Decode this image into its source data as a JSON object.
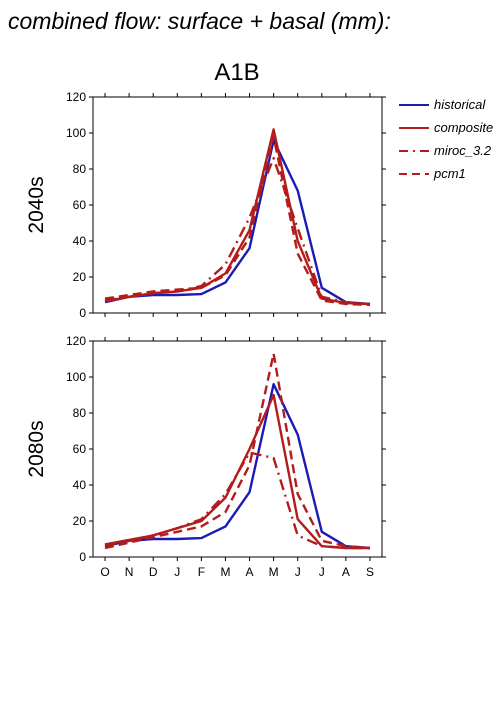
{
  "chart_data": {
    "type": "line",
    "title": "combined flow: surface + basal (mm):",
    "subtitle": "A1B",
    "categories": [
      "O",
      "N",
      "D",
      "J",
      "F",
      "M",
      "A",
      "M",
      "J",
      "J",
      "A",
      "S"
    ],
    "ylim": [
      0,
      120
    ],
    "yticks": [
      0,
      20,
      40,
      60,
      80,
      100,
      120
    ],
    "grid": false,
    "legend_position": "top-right",
    "legend": [
      "historical",
      "composite",
      "miroc_3.2",
      "pcm1"
    ],
    "series_styles": [
      {
        "name": "historical",
        "color": "#1c1cb4",
        "dash": "solid"
      },
      {
        "name": "composite",
        "color": "#b41c1c",
        "dash": "solid"
      },
      {
        "name": "miroc_3.2",
        "color": "#b41c1c",
        "dash": "dashdot"
      },
      {
        "name": "pcm1",
        "color": "#b41c1c",
        "dash": "dashed"
      }
    ],
    "panels": [
      {
        "row_label": "2040s",
        "series": [
          {
            "name": "historical",
            "values": [
              6,
              9,
              10,
              10,
              10.5,
              17,
              36,
              96,
              68,
              14,
              6,
              5
            ]
          },
          {
            "name": "composite",
            "values": [
              6.5,
              9,
              11,
              12,
              14,
              22,
              46,
              102,
              40,
              8,
              5.5,
              5
            ]
          },
          {
            "name": "miroc_3.2",
            "values": [
              7,
              9,
              11,
              12,
              15,
              27,
              53,
              86,
              47,
              9,
              6,
              5
            ]
          },
          {
            "name": "pcm1",
            "values": [
              8,
              10,
              12,
              13,
              14,
              21,
              42,
              98,
              33,
              7,
              5,
              4.5
            ]
          }
        ]
      },
      {
        "row_label": "2080s",
        "series": [
          {
            "name": "historical",
            "values": [
              6,
              9,
              10,
              10,
              10.5,
              17,
              36,
              96,
              68,
              14,
              6,
              5
            ]
          },
          {
            "name": "composite",
            "values": [
              7,
              9.5,
              12,
              16,
              20,
              33,
              60,
              90,
              21,
              6,
              5,
              5
            ]
          },
          {
            "name": "miroc_3.2",
            "values": [
              6.5,
              9,
              12,
              16,
              21,
              35,
              58,
              55,
              12,
              6,
              5,
              5
            ]
          },
          {
            "name": "pcm1",
            "values": [
              5,
              8,
              11,
              14,
              17,
              25,
              51,
              113,
              35,
              9,
              6,
              5
            ]
          }
        ]
      }
    ]
  }
}
